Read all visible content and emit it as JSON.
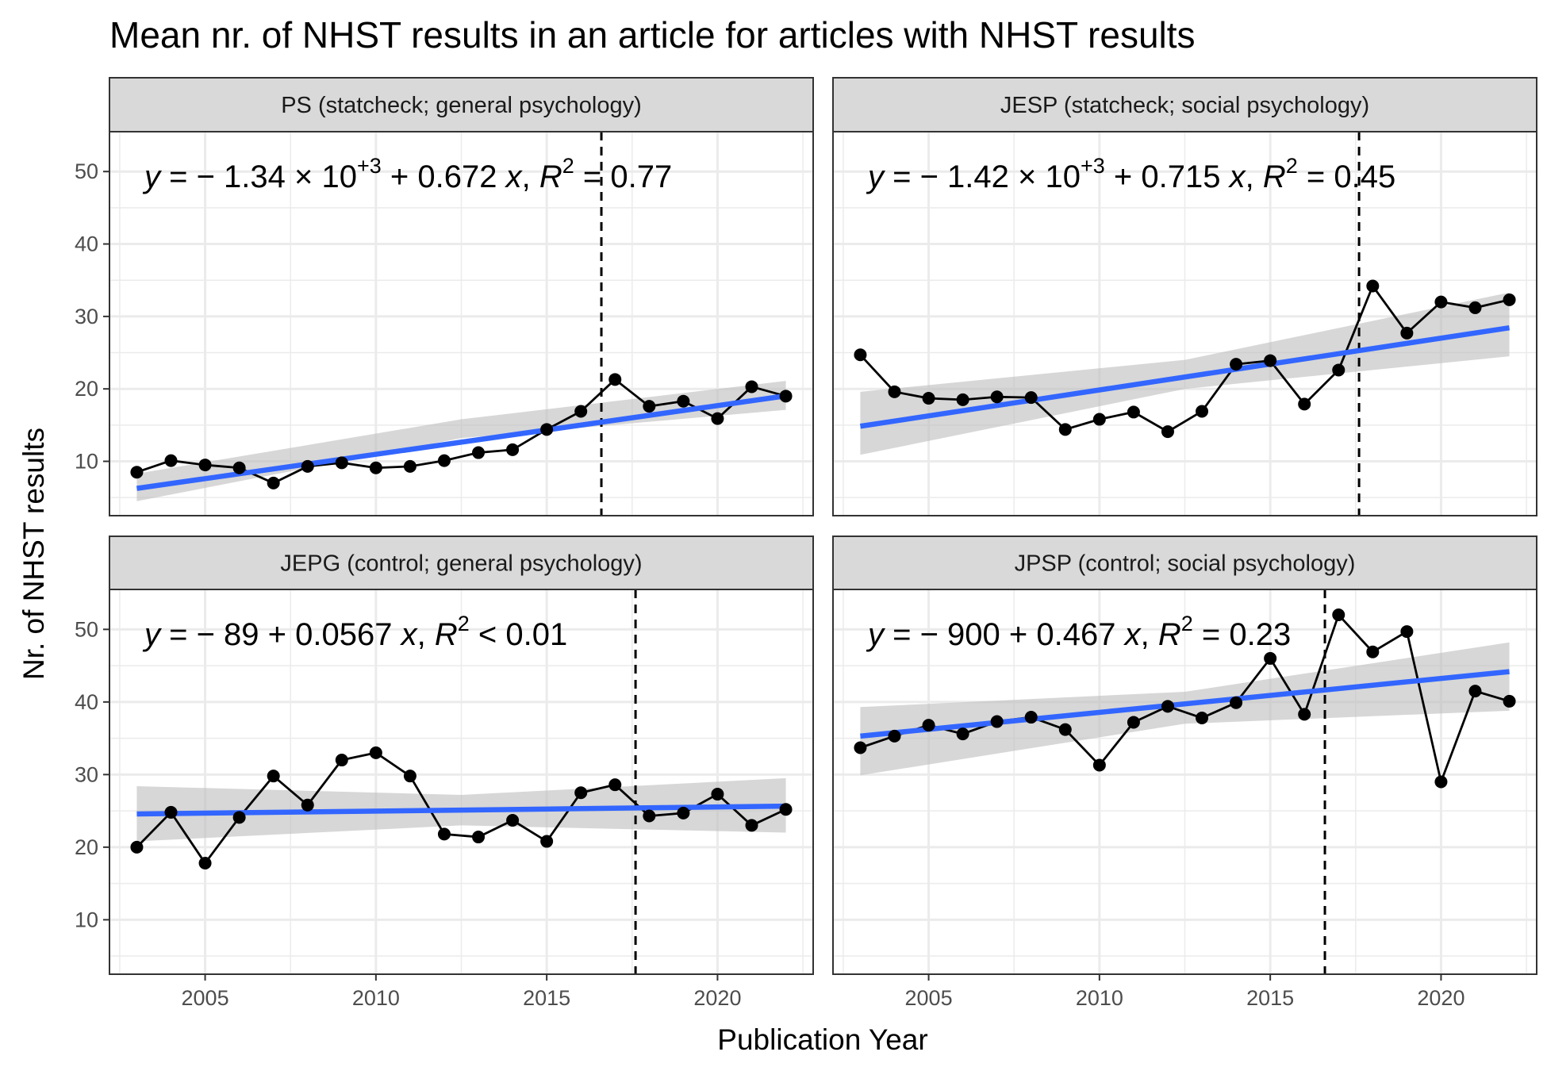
{
  "chart_data": {
    "type": "line",
    "title": "Mean nr. of NHST results in an article for articles with NHST results",
    "xlabel": "Publication Year",
    "ylabel": "Nr. of NHST results",
    "x_ticks": [
      2005,
      2010,
      2015,
      2020
    ],
    "y_ticks": [
      10,
      20,
      30,
      40,
      50
    ],
    "xlim": [
      2002.2,
      2022.8
    ],
    "ylim": [
      2.5,
      55.5
    ],
    "grid": true,
    "colors": {
      "line": "#000000",
      "fit": "#3366ff",
      "ribbon": "#bdbdbd",
      "strip": "#d9d9d9",
      "vline": "#000000",
      "grid": "#ebebeb"
    },
    "panels": [
      {
        "strip": "PS (statcheck; general psychology)",
        "eq": {
          "a": "− 1.34 × 10",
          "exp": "+3",
          "b": " + 0.672 ",
          "rel": " = 0.77"
        },
        "vline": 2016.6,
        "x": [
          2003,
          2004,
          2005,
          2006,
          2007,
          2008,
          2009,
          2010,
          2011,
          2012,
          2013,
          2014,
          2015,
          2016,
          2017,
          2018,
          2019,
          2020,
          2021,
          2022
        ],
        "y": [
          8.5,
          10.1,
          9.5,
          9.1,
          7.0,
          9.3,
          9.8,
          9.1,
          9.3,
          10.1,
          11.2,
          11.6,
          14.4,
          16.9,
          21.3,
          17.6,
          18.3,
          15.9,
          20.3,
          19.0
        ],
        "fit": {
          "intercept": -1339.75,
          "slope": 0.672
        },
        "ribbon": {
          "lower": [
            4.5,
            13.2,
            17.1
          ],
          "upper": [
            8.3,
            15.8,
            21.1
          ]
        }
      },
      {
        "strip": "JESP (statcheck; social psychology)",
        "eq": {
          "a": "− 1.42 × 10",
          "exp": "+3",
          "b": " + 0.715 ",
          "rel": " = 0.45"
        },
        "vline": 2017.6,
        "x": [
          2003,
          2004,
          2005,
          2006,
          2007,
          2008,
          2009,
          2010,
          2011,
          2012,
          2013,
          2014,
          2015,
          2016,
          2017,
          2018,
          2019,
          2020,
          2021,
          2022
        ],
        "y": [
          24.7,
          19.6,
          18.7,
          18.5,
          18.9,
          18.8,
          14.4,
          15.8,
          16.8,
          14.1,
          16.9,
          23.4,
          23.9,
          17.9,
          22.6,
          34.2,
          27.7,
          32.0,
          31.2,
          32.3
        ],
        "fit": {
          "intercept": -1417.3,
          "slope": 0.715
        },
        "ribbon": {
          "lower": [
            10.9,
            20.0,
            24.5
          ],
          "upper": [
            19.6,
            24.0,
            33.3
          ]
        }
      },
      {
        "strip": "JEPG (control; general psychology)",
        "eq": {
          "a": "− 89",
          "exp": "",
          "b": " + 0.0567 ",
          "rel": " < 0.01"
        },
        "vline": 2017.6,
        "x": [
          2003,
          2004,
          2005,
          2006,
          2007,
          2008,
          2009,
          2010,
          2011,
          2012,
          2013,
          2014,
          2015,
          2016,
          2017,
          2018,
          2019,
          2020,
          2021,
          2022
        ],
        "y": [
          20.0,
          24.8,
          17.8,
          24.1,
          29.8,
          25.8,
          32.0,
          33.0,
          29.8,
          21.8,
          21.4,
          23.7,
          20.8,
          27.5,
          28.6,
          24.3,
          24.7,
          27.3,
          23.0,
          25.2
        ],
        "fit": {
          "intercept": -89.0,
          "slope": 0.0567
        },
        "ribbon": {
          "lower": [
            20.8,
            23.0,
            22.0
          ],
          "upper": [
            28.4,
            27.2,
            29.5
          ]
        }
      },
      {
        "strip": "JPSP (control; social psychology)",
        "eq": {
          "a": "− 900",
          "exp": "",
          "b": " + 0.467 ",
          "rel": " = 0.23"
        },
        "vline": 2016.6,
        "x": [
          2003,
          2004,
          2005,
          2006,
          2007,
          2008,
          2009,
          2010,
          2011,
          2012,
          2013,
          2014,
          2015,
          2016,
          2017,
          2018,
          2019,
          2020,
          2021,
          2022
        ],
        "y": [
          33.7,
          35.3,
          36.8,
          35.6,
          37.3,
          37.9,
          36.2,
          31.3,
          37.2,
          39.4,
          37.8,
          39.9,
          46.0,
          38.3,
          52.0,
          46.9,
          49.7,
          29.0,
          41.5,
          40.1
        ],
        "fit": {
          "intercept": -900.1,
          "slope": 0.467
        },
        "ribbon": {
          "lower": [
            29.9,
            37.0,
            38.8
          ],
          "upper": [
            39.3,
            41.4,
            48.2
          ]
        }
      }
    ]
  }
}
